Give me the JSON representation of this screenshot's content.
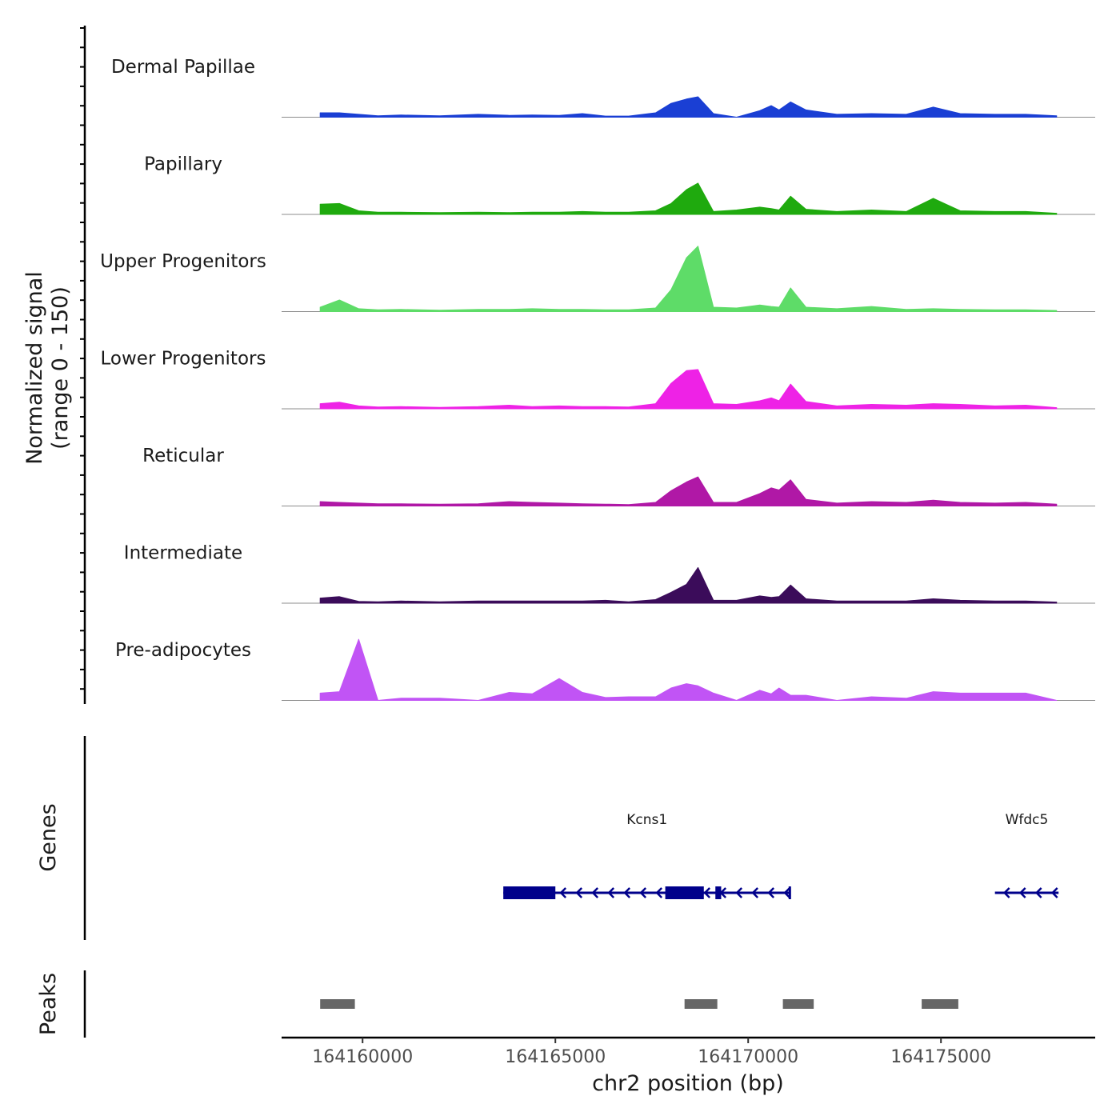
{
  "chart_data": {
    "type": "area",
    "title": "",
    "y_axis_title": "Normalized signal",
    "y_axis_subtitle": "(range 0 - 150)",
    "ylim": [
      0,
      150
    ],
    "xlabel": "chr2 position (bp)",
    "xlim": [
      164157900,
      164179000
    ],
    "x_ticks": [
      164160000,
      164165000,
      164170000,
      164175000
    ],
    "x_tick_labels": [
      "164160000",
      "164165000",
      "164170000",
      "164175000"
    ],
    "x_positions": [
      164158900,
      164159400,
      164159900,
      164160400,
      164161000,
      164162000,
      164163000,
      164163800,
      164164400,
      164165100,
      164165700,
      164166300,
      164166900,
      164167600,
      164168000,
      164168400,
      164168700,
      164169100,
      164169700,
      164170300,
      164170600,
      164170800,
      164171100,
      164171500,
      164172300,
      164173200,
      164174100,
      164174800,
      164175500,
      164176400,
      164177200,
      164178000
    ],
    "series": [
      {
        "name": "Dermal Papillae",
        "color": "#1a3fd4",
        "values": [
          12,
          12,
          8,
          4,
          6,
          4,
          8,
          5,
          6,
          5,
          10,
          3,
          3,
          12,
          38,
          50,
          56,
          10,
          0,
          18,
          32,
          20,
          42,
          20,
          8,
          10,
          8,
          28,
          10,
          8,
          8,
          4
        ]
      },
      {
        "name": "Papillary",
        "color": "#1faa0e",
        "values": [
          28,
          30,
          10,
          6,
          6,
          5,
          6,
          5,
          6,
          6,
          8,
          6,
          6,
          10,
          30,
          68,
          86,
          8,
          12,
          20,
          16,
          12,
          50,
          14,
          8,
          12,
          8,
          44,
          10,
          8,
          8,
          3
        ]
      },
      {
        "name": "Upper Progenitors",
        "color": "#5edc68",
        "values": [
          12,
          32,
          8,
          5,
          6,
          4,
          6,
          6,
          8,
          6,
          6,
          5,
          5,
          10,
          60,
          148,
          180,
          12,
          10,
          18,
          14,
          12,
          65,
          12,
          8,
          14,
          6,
          8,
          6,
          5,
          5,
          3
        ]
      },
      {
        "name": "Lower Progenitors",
        "color": "#ee22e6",
        "values": [
          14,
          18,
          8,
          5,
          6,
          4,
          6,
          10,
          6,
          8,
          6,
          6,
          5,
          14,
          70,
          105,
          108,
          14,
          12,
          22,
          30,
          22,
          68,
          20,
          8,
          12,
          10,
          14,
          12,
          8,
          10,
          3
        ]
      },
      {
        "name": "Reticular",
        "color": "#b018a6",
        "values": [
          12,
          10,
          8,
          6,
          6,
          5,
          6,
          12,
          10,
          8,
          6,
          5,
          4,
          10,
          42,
          66,
          80,
          10,
          10,
          34,
          50,
          44,
          72,
          18,
          8,
          12,
          10,
          16,
          10,
          8,
          10,
          5
        ]
      },
      {
        "name": "Intermediate",
        "color": "#3b0c5a",
        "values": [
          14,
          18,
          5,
          4,
          6,
          4,
          6,
          6,
          6,
          6,
          6,
          8,
          4,
          10,
          30,
          52,
          98,
          8,
          8,
          20,
          16,
          18,
          50,
          12,
          6,
          6,
          6,
          12,
          8,
          6,
          6,
          3
        ]
      },
      {
        "name": "Pre-adipocytes",
        "color": "#c154f5",
        "values": [
          20,
          24,
          168,
          0,
          6,
          6,
          0,
          22,
          18,
          60,
          22,
          8,
          10,
          10,
          34,
          46,
          40,
          20,
          0,
          28,
          18,
          34,
          14,
          14,
          0,
          10,
          6,
          24,
          20,
          20,
          20,
          0
        ]
      }
    ],
    "genes": [
      {
        "name": "Kcns1",
        "strand": "-",
        "start": 164163650,
        "end": 164171100,
        "exons": [
          [
            164163650,
            164165000
          ],
          [
            164167850,
            164168850
          ],
          [
            164169150,
            164169300
          ],
          [
            164171050,
            164171100
          ]
        ]
      },
      {
        "name": "Wfdc5",
        "strand": "-",
        "start": 164176400,
        "end": 164178050,
        "exons": []
      }
    ],
    "peaks": [
      [
        164158900,
        164159800
      ],
      [
        164168350,
        164169200
      ],
      [
        164170900,
        164171700
      ],
      [
        164174500,
        164175450
      ]
    ],
    "panel_titles": {
      "genes": "Genes",
      "peaks": "Peaks"
    },
    "peak_color": "#666666",
    "gene_color": "#00008b"
  }
}
